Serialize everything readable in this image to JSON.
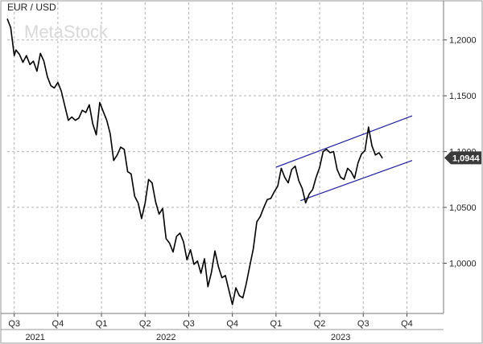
{
  "chart_data": {
    "type": "line",
    "title": "EUR / USD",
    "watermark": "MetaStock",
    "y_ticks": [
      "1,2000",
      "1,1500",
      "1,1000",
      "1,0500",
      "1,0000"
    ],
    "y_tick_values": [
      1.2,
      1.15,
      1.1,
      1.05,
      1.0
    ],
    "ylim": [
      0.955,
      1.225
    ],
    "xlim": [
      2021.46,
      2023.96
    ],
    "quarter_ticks": [
      "Q3",
      "Q4",
      "Q1",
      "Q2",
      "Q3",
      "Q4",
      "Q1",
      "Q2",
      "Q3",
      "Q4"
    ],
    "quarter_tick_x": [
      2021.5,
      2021.75,
      2022.0,
      2022.25,
      2022.5,
      2022.75,
      2023.0,
      2023.25,
      2023.5,
      2023.75
    ],
    "year_labels": [
      "2021",
      "2022",
      "2023"
    ],
    "year_label_x": [
      2021.62,
      2022.37,
      2023.37
    ],
    "last_value_label": "1,0944",
    "last_value": 1.0944,
    "grid": true,
    "series": [
      {
        "x": [
          2021.46,
          2021.48,
          2021.5,
          2021.51,
          2021.53,
          2021.55,
          2021.57,
          2021.59,
          2021.61,
          2021.63,
          2021.65,
          2021.67,
          2021.69,
          2021.71,
          2021.73,
          2021.75,
          2021.77,
          2021.79,
          2021.81,
          2021.83,
          2021.85,
          2021.87,
          2021.89,
          2021.91,
          2021.93,
          2021.95,
          2021.97,
          2021.99,
          2022.01,
          2022.03,
          2022.05,
          2022.07,
          2022.09,
          2022.11,
          2022.13,
          2022.15,
          2022.17,
          2022.19,
          2022.21,
          2022.23,
          2022.25,
          2022.27,
          2022.29,
          2022.31,
          2022.33,
          2022.35,
          2022.37,
          2022.39,
          2022.41,
          2022.43,
          2022.45,
          2022.47,
          2022.49,
          2022.51,
          2022.53,
          2022.55,
          2022.57,
          2022.59,
          2022.61,
          2022.63,
          2022.65,
          2022.67,
          2022.69,
          2022.71,
          2022.73,
          2022.75,
          2022.77,
          2022.79,
          2022.81,
          2022.83,
          2022.85,
          2022.87,
          2022.89,
          2022.91,
          2022.93,
          2022.95,
          2022.97,
          2022.99,
          2023.01,
          2023.03,
          2023.05,
          2023.07,
          2023.09,
          2023.11,
          2023.13,
          2023.15,
          2023.17,
          2023.19,
          2023.21,
          2023.23,
          2023.25,
          2023.27,
          2023.29,
          2023.31,
          2023.33,
          2023.35,
          2023.37,
          2023.39,
          2023.41,
          2023.43,
          2023.45,
          2023.47,
          2023.49,
          2023.51,
          2023.53,
          2023.55,
          2023.57,
          2023.59,
          2023.61
        ],
        "y": [
          1.219,
          1.211,
          1.186,
          1.191,
          1.187,
          1.18,
          1.186,
          1.178,
          1.181,
          1.172,
          1.188,
          1.181,
          1.167,
          1.159,
          1.157,
          1.162,
          1.154,
          1.141,
          1.128,
          1.131,
          1.128,
          1.13,
          1.137,
          1.135,
          1.142,
          1.125,
          1.115,
          1.144,
          1.136,
          1.128,
          1.116,
          1.092,
          1.097,
          1.104,
          1.102,
          1.082,
          1.08,
          1.06,
          1.054,
          1.04,
          1.054,
          1.075,
          1.072,
          1.055,
          1.044,
          1.049,
          1.022,
          1.018,
          1.01,
          1.024,
          1.027,
          1.019,
          1.003,
          1.012,
          0.999,
          1.002,
          0.991,
          1.004,
          0.979,
          0.992,
          1.011,
          0.997,
          0.987,
          0.989,
          0.976,
          0.963,
          0.978,
          0.971,
          0.969,
          0.982,
          0.998,
          1.013,
          1.037,
          1.042,
          1.05,
          1.057,
          1.058,
          1.064,
          1.069,
          1.085,
          1.077,
          1.072,
          1.084,
          1.087,
          1.074,
          1.067,
          1.054,
          1.062,
          1.066,
          1.077,
          1.086,
          1.1,
          1.102,
          1.099,
          1.1,
          1.084,
          1.077,
          1.075,
          1.085,
          1.082,
          1.076,
          1.09,
          1.098,
          1.101,
          1.122,
          1.105,
          1.097,
          1.099,
          1.094
        ]
      }
    ],
    "trend_channel": [
      {
        "x1": 2023.0,
        "y1": 1.086,
        "x2": 2023.78,
        "y2": 1.132
      },
      {
        "x1": 2023.14,
        "y1": 1.056,
        "x2": 2023.78,
        "y2": 1.092
      }
    ],
    "colors": {
      "line": "#000000",
      "channel": "#1a1a99",
      "grid": "#b0b0b0",
      "frame": "#999999",
      "badge": "#3a3a3a",
      "background": "#ffffff"
    }
  }
}
